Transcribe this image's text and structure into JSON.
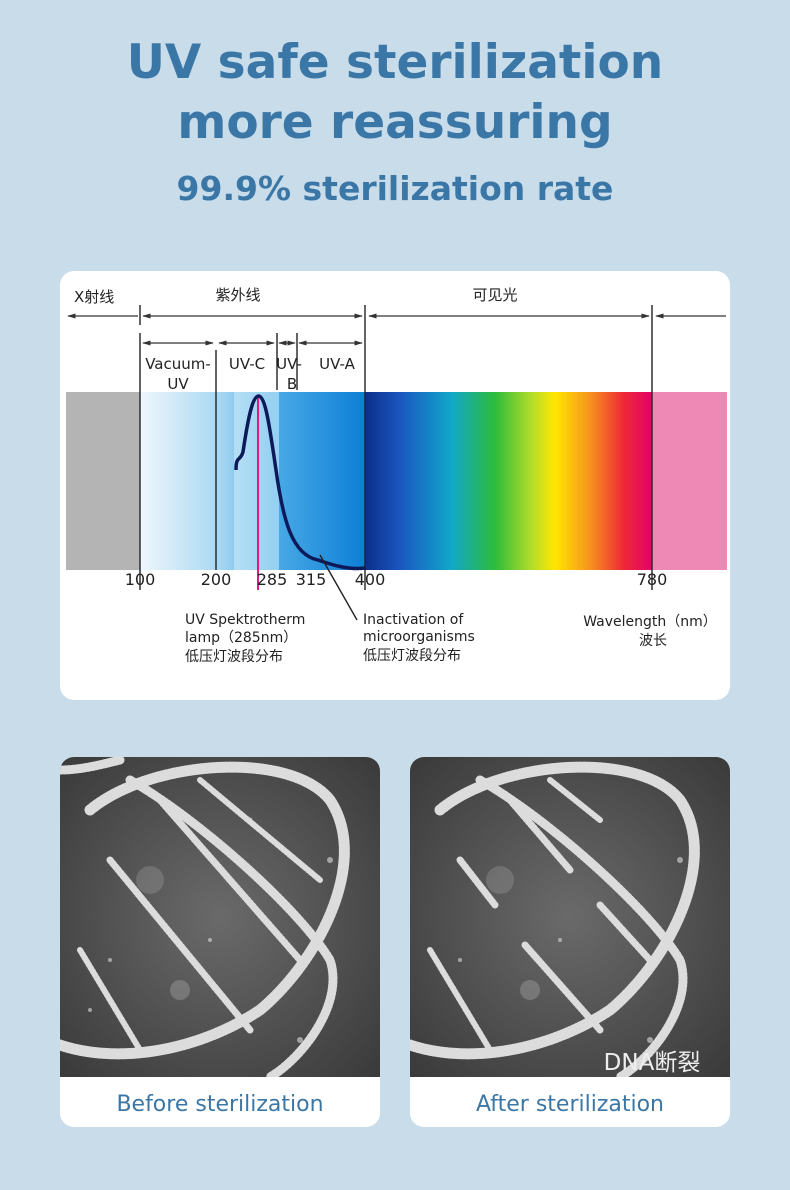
{
  "header": {
    "title_lines": [
      "UV safe sterilization",
      "more reassuring"
    ],
    "subtitle": "99.9% sterilization rate"
  },
  "spectrum": {
    "regions": [
      "X射线",
      "紫外线",
      "可见光"
    ],
    "bands": [
      {
        "lines": [
          "Vacuum-",
          "UV"
        ]
      },
      {
        "lines": [
          "UV-C"
        ]
      },
      {
        "lines": [
          "UV-",
          "B"
        ]
      },
      {
        "lines": [
          "UV-A"
        ]
      }
    ],
    "ticks": [
      "100",
      "200",
      "285",
      "315",
      "400",
      "780"
    ],
    "notes": [
      {
        "lines": [
          "UV Spektrotherm",
          "lamp（285nm）",
          "低压灯波段分布"
        ]
      },
      {
        "lines": [
          "Inactivation of",
          "microorganisms",
          "低压灯波段分布"
        ]
      },
      {
        "lines": [
          "Wavelength（nm）",
          "波长"
        ]
      }
    ]
  },
  "photos": [
    {
      "caption": "Before sterilization"
    },
    {
      "caption": "After sterilization",
      "tag": "DNA断裂"
    }
  ]
}
